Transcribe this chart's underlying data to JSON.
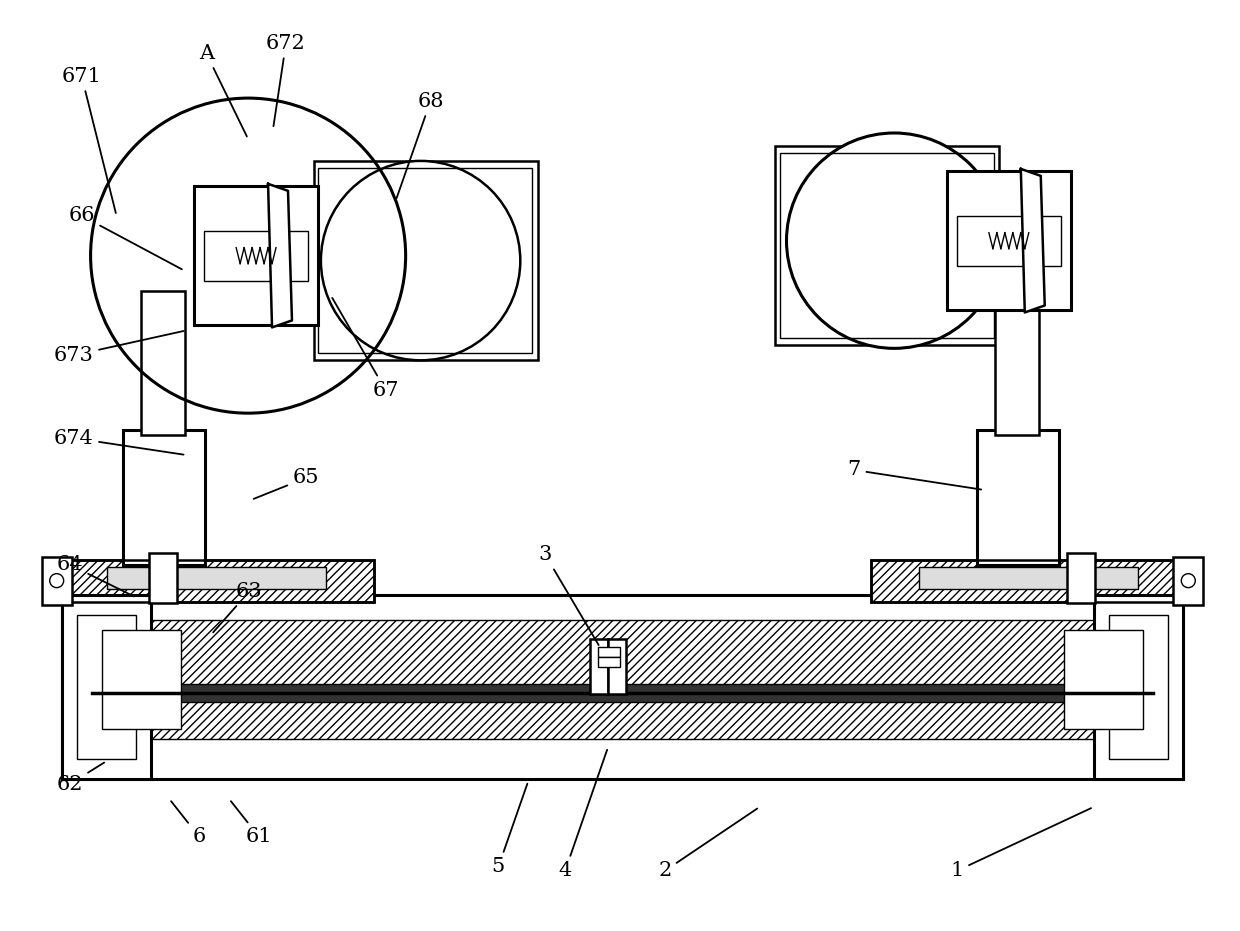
{
  "bg_color": "#ffffff",
  "line_color": "#000000",
  "fig_width": 12.4,
  "fig_height": 9.31,
  "lw": 1.8,
  "lw_thick": 2.2,
  "lw_thin": 1.0
}
